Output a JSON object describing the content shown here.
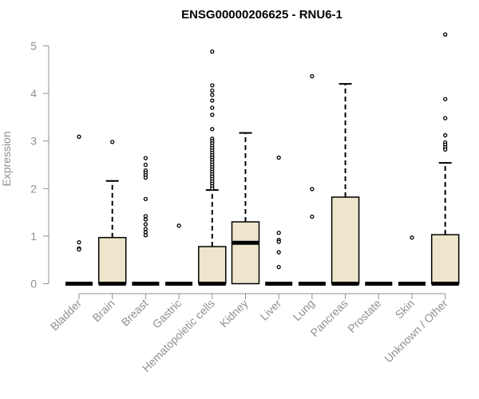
{
  "chart_data": {
    "type": "boxplot",
    "title": "ENSG00000206625 - RNU6-1",
    "xlabel": "",
    "ylabel": "Expression",
    "ylim": [
      0,
      5.3
    ],
    "yticks": [
      0,
      1,
      2,
      3,
      4,
      5
    ],
    "grid": false,
    "box_fill": "#ede6cc",
    "box_stroke": "#000000",
    "axis_color": "#909090",
    "categories": [
      "Bladder",
      "Brain",
      "Breast",
      "Gastric",
      "Hematopoietic cells",
      "Kidney",
      "Liver",
      "Lung",
      "Pancreas",
      "Prostate",
      "Skin",
      "Unknown / Other"
    ],
    "boxes": [
      {
        "category": "Bladder",
        "min": 0,
        "q1": 0,
        "median": 0,
        "q3": 0,
        "max": 0,
        "outliers": [
          3.09,
          0.87,
          0.74,
          0.72
        ]
      },
      {
        "category": "Brain",
        "min": 0,
        "q1": 0,
        "median": 0,
        "q3": 0.97,
        "max": 2.16,
        "outliers": [
          2.98
        ]
      },
      {
        "category": "Breast",
        "min": 0,
        "q1": 0,
        "median": 0,
        "q3": 0,
        "max": 0,
        "outliers": [
          2.64,
          2.5,
          2.38,
          2.33,
          2.28,
          2.23,
          1.78,
          1.42,
          1.35,
          1.25,
          1.15,
          1.08,
          1.02
        ]
      },
      {
        "category": "Gastric",
        "min": 0,
        "q1": 0,
        "median": 0,
        "q3": 0,
        "max": 0,
        "outliers": [
          1.22
        ]
      },
      {
        "category": "Hematopoietic cells",
        "min": 0,
        "q1": 0,
        "median": 0,
        "q3": 0.78,
        "max": 1.97,
        "outliers": [
          4.88,
          4.17,
          4.06,
          3.97,
          3.85,
          3.7,
          3.55,
          3.25,
          3.05,
          3.0,
          2.95,
          2.9,
          2.85,
          2.8,
          2.75,
          2.7,
          2.65,
          2.6,
          2.55,
          2.5,
          2.45,
          2.4,
          2.35,
          2.3,
          2.25,
          2.2,
          2.15,
          2.1,
          2.05,
          2.0
        ]
      },
      {
        "category": "Kidney",
        "min": 0,
        "q1": 0,
        "median": 0.86,
        "q3": 1.3,
        "max": 3.17,
        "outliers": []
      },
      {
        "category": "Liver",
        "min": 0,
        "q1": 0,
        "median": 0,
        "q3": 0,
        "max": 0,
        "outliers": [
          2.65,
          1.07,
          0.92,
          0.88,
          0.66,
          0.35
        ]
      },
      {
        "category": "Lung",
        "min": 0,
        "q1": 0,
        "median": 0,
        "q3": 0,
        "max": 0,
        "outliers": [
          4.36,
          1.99,
          1.41
        ]
      },
      {
        "category": "Pancreas",
        "min": 0,
        "q1": 0,
        "median": 0,
        "q3": 1.82,
        "max": 4.2,
        "outliers": []
      },
      {
        "category": "Prostate",
        "min": 0,
        "q1": 0,
        "median": 0,
        "q3": 0,
        "max": 0,
        "outliers": []
      },
      {
        "category": "Skin",
        "min": 0,
        "q1": 0,
        "median": 0,
        "q3": 0,
        "max": 0,
        "outliers": [
          0.97
        ]
      },
      {
        "category": "Unknown / Other",
        "min": 0,
        "q1": 0,
        "median": 0,
        "q3": 1.03,
        "max": 2.54,
        "outliers": [
          5.24,
          3.88,
          3.48,
          3.12,
          2.97,
          2.92,
          2.87,
          2.82
        ]
      }
    ]
  }
}
